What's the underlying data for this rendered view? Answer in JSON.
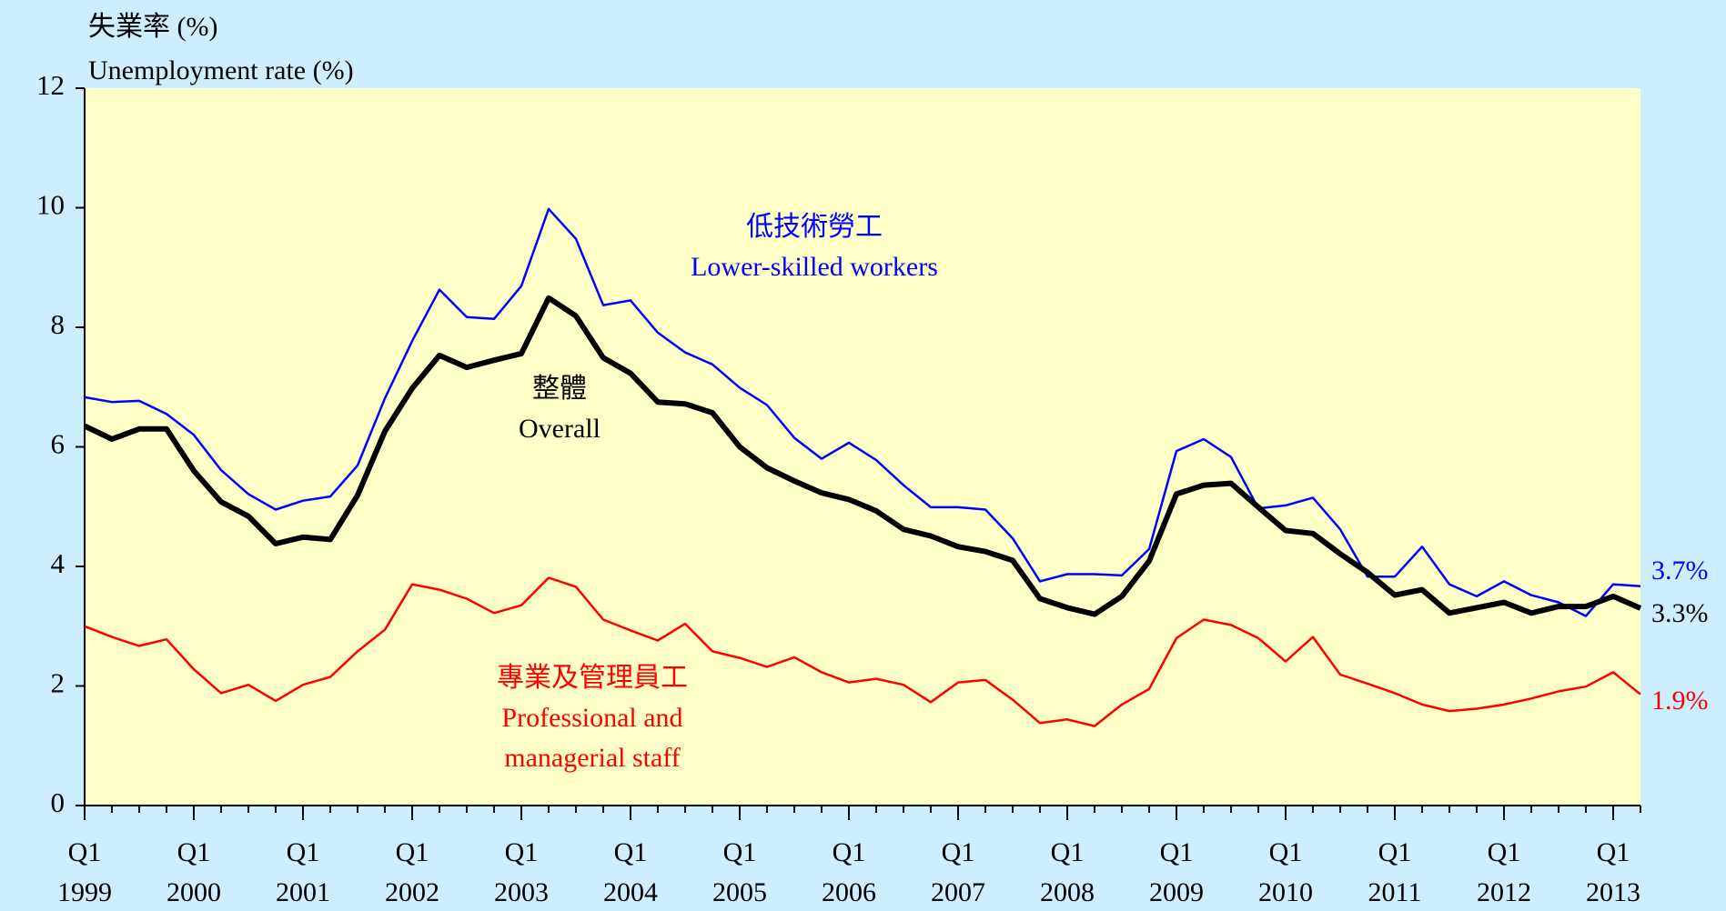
{
  "chart_data": {
    "type": "line",
    "y_label": "失業率 (%)\nUnemployment rate (%)",
    "categories": [
      "Q1\n1999",
      null,
      null,
      null,
      "Q1\n2000",
      null,
      null,
      null,
      "Q1\n2001",
      null,
      null,
      null,
      "Q1\n2002",
      null,
      null,
      null,
      "Q1\n2003",
      null,
      null,
      null,
      "Q1\n2004",
      null,
      null,
      null,
      "Q1\n2005",
      null,
      null,
      null,
      "Q1\n2006",
      null,
      null,
      null,
      "Q1\n2007",
      null,
      null,
      null,
      "Q1\n2008",
      null,
      null,
      null,
      "Q1\n2009",
      null,
      null,
      null,
      "Q1\n2010",
      null,
      null,
      null,
      "Q1\n2011",
      null,
      null,
      null,
      "Q1\n2012",
      null,
      null,
      null,
      "Q1\n2013",
      null
    ],
    "series": [
      {
        "name": "低技術勞工\nLower-skilled workers",
        "color": "#0000ff",
        "values": [
          6.83,
          6.75,
          6.77,
          6.55,
          6.2,
          5.61,
          5.21,
          4.95,
          5.1,
          5.17,
          5.69,
          6.81,
          7.77,
          8.63,
          8.17,
          8.14,
          8.69,
          9.98,
          9.48,
          8.37,
          8.45,
          7.91,
          7.58,
          7.38,
          6.99,
          6.7,
          6.15,
          5.8,
          6.07,
          5.78,
          5.36,
          4.99,
          4.99,
          4.95,
          4.47,
          3.75,
          3.87,
          3.87,
          3.85,
          4.29,
          5.93,
          6.13,
          5.83,
          4.97,
          5.02,
          5.15,
          4.62,
          3.83,
          3.83,
          4.33,
          3.7,
          3.5,
          3.75,
          3.52,
          3.4,
          3.17,
          3.7,
          3.67
        ],
        "value_labels": [
          null,
          null,
          null,
          null,
          null,
          null,
          null,
          null,
          null,
          null,
          null,
          null,
          null,
          null,
          null,
          null,
          null,
          null,
          null,
          null,
          null,
          null,
          null,
          null,
          null,
          null,
          null,
          null,
          null,
          null,
          null,
          null,
          null,
          null,
          null,
          null,
          null,
          null,
          null,
          null,
          null,
          null,
          null,
          null,
          null,
          null,
          null,
          null,
          null,
          null,
          null,
          null,
          null,
          null,
          null,
          null,
          null,
          "3.7%"
        ]
      },
      {
        "name": "整體\nOverall",
        "color": "#000000",
        "values": [
          6.35,
          6.13,
          6.3,
          6.3,
          5.6,
          5.08,
          4.84,
          4.38,
          4.49,
          4.45,
          5.19,
          6.26,
          6.98,
          7.53,
          7.33,
          7.45,
          7.56,
          8.49,
          8.19,
          7.49,
          7.23,
          6.75,
          6.72,
          6.57,
          6.0,
          5.65,
          5.43,
          5.23,
          5.12,
          4.93,
          4.62,
          4.51,
          4.33,
          4.25,
          4.1,
          3.46,
          3.31,
          3.2,
          3.5,
          4.09,
          5.21,
          5.36,
          5.39,
          4.99,
          4.6,
          4.55,
          4.21,
          3.9,
          3.52,
          3.61,
          3.22,
          3.31,
          3.4,
          3.22,
          3.33,
          3.33,
          3.5,
          3.3
        ],
        "value_labels": [
          null,
          null,
          null,
          null,
          null,
          null,
          null,
          null,
          null,
          null,
          null,
          null,
          null,
          null,
          null,
          null,
          null,
          null,
          null,
          null,
          null,
          null,
          null,
          null,
          null,
          null,
          null,
          null,
          null,
          null,
          null,
          null,
          null,
          null,
          null,
          null,
          null,
          null,
          null,
          null,
          null,
          null,
          null,
          null,
          null,
          null,
          null,
          null,
          null,
          null,
          null,
          null,
          null,
          null,
          null,
          null,
          null,
          "3.3%"
        ]
      },
      {
        "name": "專業及管理員工\nProfessional and\nmanagerial staff",
        "color": "#ff0000",
        "values": [
          3.0,
          2.82,
          2.67,
          2.78,
          2.28,
          1.88,
          2.02,
          1.75,
          2.02,
          2.15,
          2.58,
          2.94,
          3.7,
          3.61,
          3.46,
          3.22,
          3.35,
          3.81,
          3.66,
          3.11,
          2.93,
          2.76,
          3.04,
          2.58,
          2.47,
          2.32,
          2.48,
          2.23,
          2.06,
          2.12,
          2.02,
          1.73,
          2.06,
          2.1,
          1.77,
          1.38,
          1.44,
          1.33,
          1.69,
          1.95,
          2.8,
          3.11,
          3.02,
          2.8,
          2.41,
          2.82,
          2.19,
          2.04,
          1.88,
          1.69,
          1.58,
          1.62,
          1.69,
          1.79,
          1.91,
          1.99,
          2.23,
          1.86
        ],
        "value_labels": [
          null,
          null,
          null,
          null,
          null,
          null,
          null,
          null,
          null,
          null,
          null,
          null,
          null,
          null,
          null,
          null,
          null,
          null,
          null,
          null,
          null,
          null,
          null,
          null,
          null,
          null,
          null,
          null,
          null,
          null,
          null,
          null,
          null,
          null,
          null,
          null,
          null,
          null,
          null,
          null,
          null,
          null,
          null,
          null,
          null,
          null,
          null,
          null,
          null,
          null,
          null,
          null,
          null,
          null,
          null,
          null,
          null,
          "1.9%"
        ]
      }
    ],
    "ylim": [
      0,
      12
    ],
    "yticks": [
      0,
      2,
      4,
      6,
      8,
      10,
      12
    ],
    "grid": false
  }
}
